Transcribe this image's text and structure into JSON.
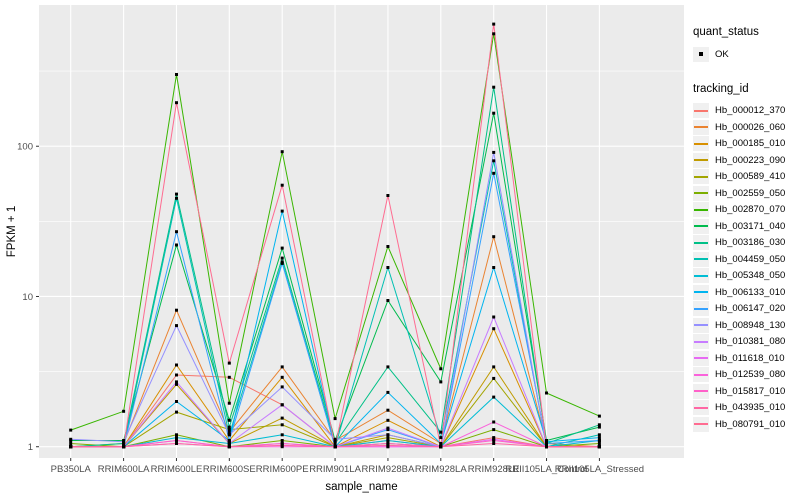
{
  "figure": {
    "ylabel": "FPKM + 1",
    "xlabel": "sample_name",
    "legend": {
      "quant_title": "quant_status",
      "ok_label": "OK",
      "tracking_title": "tracking_id"
    }
  },
  "colors": {
    "panel_bg": "#EBEBEB",
    "grid": "#FFFFFF",
    "tick": "#333333",
    "tick_label": "#4D4D4D",
    "axis_title": "#000000",
    "point": "#000000",
    "legend_key_bg": "#F0F0F0"
  },
  "chart_data": {
    "type": "line",
    "title": "",
    "xlabel": "sample_name",
    "ylabel": "FPKM + 1",
    "yscale": "log10",
    "yticks": [
      1,
      10,
      100
    ],
    "yticks_minor": [
      3.1623,
      31.623,
      316.23
    ],
    "ylim_log10": [
      -0.075,
      2.94
    ],
    "grid": true,
    "legend_position": "right",
    "point_marker": "black-square",
    "quant_status": "OK",
    "categories": [
      "PB350LA",
      "RRIM600LA",
      "RRIM600LE",
      "RRIM600SE",
      "RRIM600PE",
      "RRIM901LA",
      "RRIM928BA",
      "RRIM928LA",
      "RRIM928LE",
      "RRII105LA_Control",
      "RRII105LA_Stressed"
    ],
    "series": [
      {
        "name": "Hb_000012_370",
        "color": "#F8766D",
        "values": [
          1.0,
          1.0,
          3.0,
          2.9,
          1.9,
          1.0,
          1.1,
          1.0,
          1.15,
          1.0,
          1.0
        ]
      },
      {
        "name": "Hb_000026_060",
        "color": "#EA8331",
        "values": [
          1.0,
          1.05,
          8.1,
          1.25,
          3.4,
          1.1,
          1.75,
          1.05,
          25.0,
          1.05,
          1.0
        ]
      },
      {
        "name": "Hb_000185_010",
        "color": "#D89000",
        "values": [
          1.0,
          1.0,
          3.5,
          1.1,
          2.9,
          1.0,
          1.5,
          1.0,
          6.1,
          1.0,
          1.0
        ]
      },
      {
        "name": "Hb_000223_090",
        "color": "#C09B00",
        "values": [
          1.0,
          1.0,
          2.6,
          1.05,
          1.55,
          1.0,
          1.2,
          1.0,
          3.4,
          1.0,
          1.0
        ]
      },
      {
        "name": "Hb_000589_410",
        "color": "#A3A500",
        "values": [
          1.0,
          1.0,
          1.7,
          1.3,
          1.4,
          1.0,
          1.15,
          1.0,
          2.85,
          1.0,
          1.0
        ]
      },
      {
        "name": "Hb_002559_050",
        "color": "#7CAE00",
        "values": [
          1.05,
          1.0,
          1.2,
          1.0,
          1.1,
          1.0,
          1.05,
          1.0,
          1.3,
          1.0,
          1.05
        ]
      },
      {
        "name": "Hb_002870_070",
        "color": "#39B600",
        "values": [
          1.29,
          1.72,
          300,
          1.95,
          92.0,
          1.54,
          21.5,
          3.3,
          560,
          2.28,
          1.6
        ]
      },
      {
        "name": "Hb_003171_040",
        "color": "#00BB4E",
        "values": [
          1.1,
          1.1,
          22.0,
          1.5,
          21.0,
          1.1,
          9.4,
          2.7,
          166,
          1.1,
          1.35
        ]
      },
      {
        "name": "Hb_003186_030",
        "color": "#00C087",
        "values": [
          1.0,
          1.05,
          48.0,
          1.35,
          18.0,
          1.05,
          3.4,
          1.25,
          247,
          1.05,
          1.4
        ]
      },
      {
        "name": "Hb_004459_050",
        "color": "#00C0B2",
        "values": [
          1.0,
          1.0,
          45.0,
          1.2,
          17.0,
          1.0,
          15.6,
          1.15,
          80.0,
          1.0,
          1.2
        ]
      },
      {
        "name": "Hb_005348_050",
        "color": "#00BDD4",
        "values": [
          1.0,
          1.0,
          1.15,
          1.05,
          1.2,
          1.0,
          1.1,
          1.0,
          2.14,
          1.0,
          1.1
        ]
      },
      {
        "name": "Hb_006133_010",
        "color": "#00B4EF",
        "values": [
          1.0,
          1.0,
          2.0,
          1.1,
          37.0,
          1.0,
          2.3,
          1.05,
          15.6,
          1.08,
          1.15
        ]
      },
      {
        "name": "Hb_006147_020",
        "color": "#35A2FF",
        "values": [
          1.0,
          1.0,
          27.0,
          1.1,
          16.6,
          1.0,
          1.3,
          1.0,
          66.0,
          1.05,
          1.1
        ]
      },
      {
        "name": "Hb_008948_130",
        "color": "#9590FF",
        "values": [
          1.12,
          1.08,
          6.4,
          1.2,
          2.5,
          1.12,
          1.2,
          1.0,
          91.0,
          1.0,
          1.0
        ]
      },
      {
        "name": "Hb_010381_080",
        "color": "#C77CFF",
        "values": [
          1.0,
          1.0,
          2.7,
          1.05,
          1.9,
          1.0,
          1.33,
          1.0,
          7.3,
          1.0,
          1.0
        ]
      },
      {
        "name": "Hb_011618_010",
        "color": "#E76BF3",
        "values": [
          1.0,
          1.0,
          1.1,
          1.0,
          1.05,
          1.0,
          1.0,
          1.0,
          1.12,
          1.0,
          1.0
        ]
      },
      {
        "name": "Hb_012539_080",
        "color": "#FA62DB",
        "values": [
          1.0,
          1.0,
          1.05,
          1.0,
          1.0,
          1.0,
          1.0,
          1.0,
          1.46,
          1.0,
          1.0
        ]
      },
      {
        "name": "Hb_015817_010",
        "color": "#FF61C9",
        "values": [
          1.0,
          1.0,
          1.1,
          1.0,
          1.05,
          1.0,
          1.05,
          1.0,
          1.1,
          1.0,
          1.0
        ]
      },
      {
        "name": "Hb_043935_010",
        "color": "#FF67A4",
        "values": [
          1.0,
          1.0,
          1.05,
          1.0,
          1.02,
          1.0,
          1.02,
          1.0,
          1.05,
          1.0,
          1.0
        ]
      },
      {
        "name": "Hb_080791_010",
        "color": "#FF6C91",
        "values": [
          1.0,
          1.0,
          195,
          3.6,
          55.0,
          1.0,
          47.0,
          1.0,
          650,
          1.0,
          1.0
        ]
      }
    ]
  }
}
